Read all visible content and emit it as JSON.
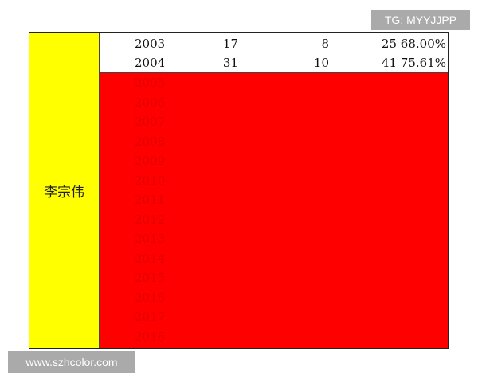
{
  "name": "李宗伟",
  "rows": [
    [
      "2003",
      "17",
      "8",
      "25",
      "68.00%"
    ],
    [
      "2004",
      "31",
      "10",
      "41",
      "75.61%"
    ]
  ],
  "obscured_years": [
    "2005",
    "2006",
    "2007",
    "2008",
    "2009",
    "2010",
    "2011",
    "2012",
    "2013",
    "2014",
    "2015",
    "2016",
    "2017",
    "2018"
  ],
  "colors": {
    "name_column": "#ffff00",
    "highlight": "#ff0000"
  },
  "watermarks": {
    "top": "TG: MYYJJPP",
    "bottom": "www.szhcolor.com"
  }
}
